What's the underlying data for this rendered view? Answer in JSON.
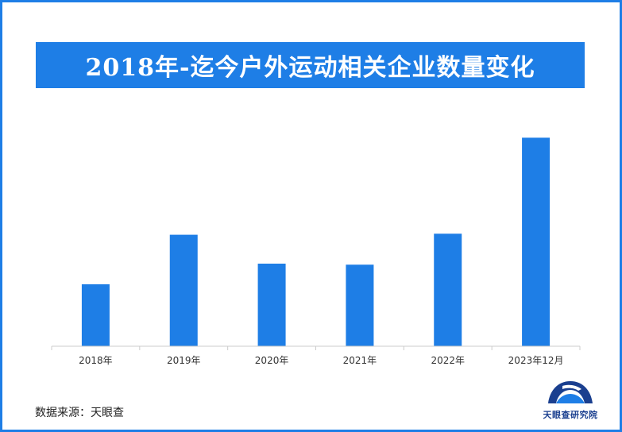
{
  "title": "2018年-迄今户外运动相关企业数量变化",
  "source": "数据来源：天眼查",
  "logo_text": "天眼查研究院",
  "colors": {
    "accent": "#1e7ee6",
    "bar": "#1e7ee6",
    "logo": "#1a3f8f"
  },
  "chart_data": {
    "type": "bar",
    "categories": [
      "2018年",
      "2019年",
      "2020年",
      "2021年",
      "2022年",
      "2023年12月"
    ],
    "values": [
      30,
      54,
      40,
      39.5,
      54.5,
      101
    ],
    "title": "2018年-迄今户外运动相关企业数量变化",
    "xlabel": "",
    "ylabel": "",
    "ylim": [
      0,
      110
    ],
    "grid": false,
    "legend": "none"
  }
}
